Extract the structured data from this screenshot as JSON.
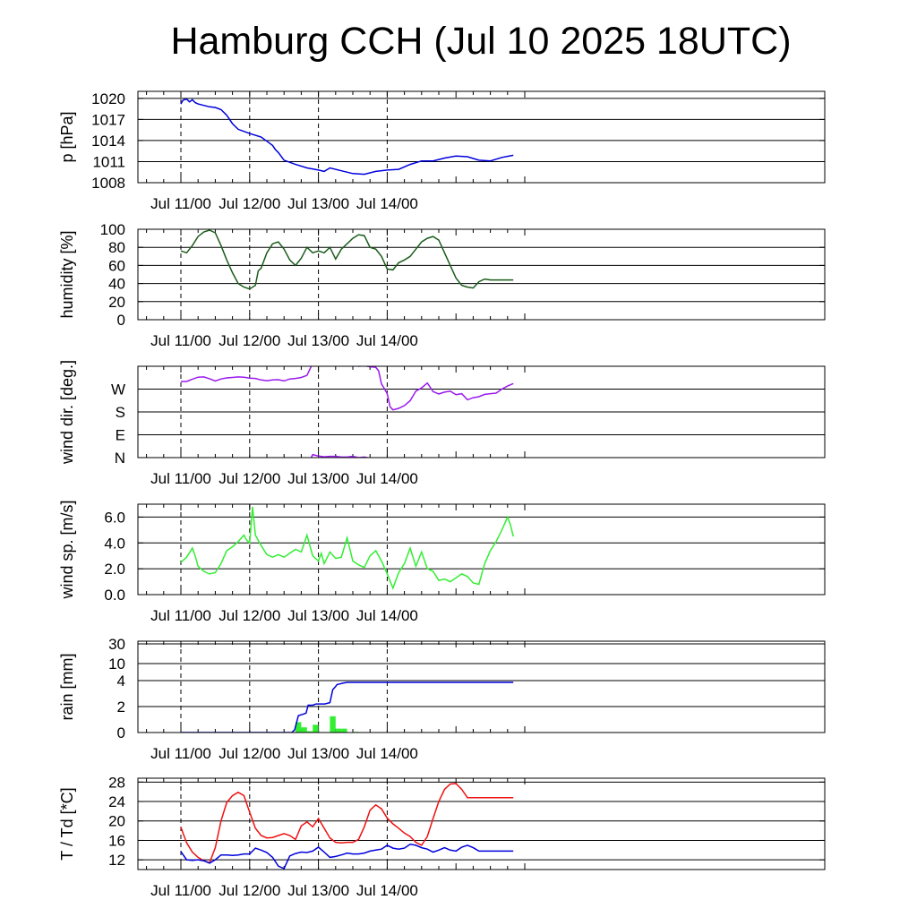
{
  "title": "Hamburg CCH (Jul 10 2025 18UTC)",
  "chart_data": [
    {
      "type": "line",
      "ylabel": "p [hPa]",
      "ylim": [
        1008,
        1021
      ],
      "y_ticks": [
        "1020",
        "1017",
        "1014",
        "1011",
        "1008"
      ],
      "x_ticks": [
        "Jul 11/00",
        "Jul 12/00",
        "Jul 13/00",
        "Jul 14/00"
      ],
      "series": [
        {
          "color": "#0000dd",
          "x": [
            0,
            0.5,
            1,
            2,
            3,
            4,
            5,
            6,
            8,
            10,
            12,
            14,
            16,
            18,
            20,
            24,
            28,
            30,
            32,
            33,
            34,
            36,
            40,
            44,
            48,
            50,
            52,
            56,
            60,
            64,
            68,
            72,
            76,
            80,
            84,
            88,
            92,
            96,
            100,
            104,
            108,
            112,
            116
          ],
          "values": [
            1019.2,
            1019.6,
            1019.8,
            1019.9,
            1019.5,
            1019.8,
            1019.4,
            1019.2,
            1019.0,
            1018.8,
            1018.7,
            1018.4,
            1017.6,
            1016.4,
            1015.6,
            1015.0,
            1014.5,
            1013.9,
            1013.3,
            1012.7,
            1012.3,
            1011.2,
            1010.6,
            1010.1,
            1009.8,
            1009.6,
            1010.1,
            1009.7,
            1009.3,
            1009.2,
            1009.6,
            1009.8,
            1009.9,
            1010.6,
            1011.1,
            1011.1,
            1011.5,
            1011.8,
            1011.7,
            1011.2,
            1011.1,
            1011.6,
            1011.9
          ]
        }
      ]
    },
    {
      "type": "line",
      "ylabel": "humidity [%]",
      "ylim": [
        0,
        100
      ],
      "y_ticks": [
        "100",
        "80",
        "60",
        "40",
        "20",
        "0"
      ],
      "x_ticks": [
        "Jul 11/00",
        "Jul 12/00",
        "Jul 13/00",
        "Jul 14/00"
      ],
      "series": [
        {
          "color": "#1a5c1a",
          "x": [
            0,
            2,
            4,
            6,
            8,
            10,
            12,
            14,
            16,
            18,
            20,
            22,
            24,
            26,
            27,
            28,
            30,
            32,
            34,
            36,
            38,
            40,
            42,
            44,
            46,
            48,
            50,
            52,
            54,
            56,
            58,
            60,
            62,
            64,
            66,
            68,
            70,
            72,
            74,
            76,
            78,
            80,
            82,
            84,
            86,
            88,
            90,
            92,
            94,
            96,
            98,
            100,
            102,
            104,
            106,
            108,
            110,
            112,
            114,
            116
          ],
          "values": [
            76,
            74,
            82,
            92,
            97,
            99,
            96,
            82,
            66,
            52,
            40,
            36,
            34,
            38,
            54,
            57,
            74,
            84,
            86,
            78,
            66,
            60,
            68,
            80,
            74,
            76,
            74,
            80,
            67,
            78,
            84,
            90,
            94,
            93,
            80,
            78,
            70,
            56,
            55,
            63,
            66,
            70,
            78,
            86,
            90,
            92,
            88,
            74,
            60,
            46,
            38,
            36,
            35,
            42,
            45,
            44,
            44,
            44,
            44,
            44
          ]
        }
      ]
    },
    {
      "type": "line",
      "ylabel": "wind dir. [deg.]",
      "ylim": [
        0,
        360
      ],
      "y_ticks": [
        "W",
        "S",
        "E",
        "N"
      ],
      "x_ticks": [
        "Jul 11/00",
        "Jul 12/00",
        "Jul 13/00",
        "Jul 14/00"
      ],
      "series": [
        {
          "color": "#9a1aee",
          "x": [
            0,
            2,
            4,
            6,
            8,
            10,
            12,
            14,
            16,
            18,
            20,
            22,
            24,
            26,
            28,
            30,
            32,
            34,
            36,
            38,
            40,
            42,
            44,
            46,
            48,
            50,
            52,
            54,
            56,
            58,
            60,
            62,
            64,
            66,
            68,
            69,
            70,
            71,
            72,
            73,
            74,
            76,
            78,
            80,
            82,
            84,
            86,
            88,
            90,
            92,
            94,
            96,
            98,
            100,
            102,
            104,
            106,
            108,
            110,
            112,
            114,
            116
          ],
          "values": [
            300,
            300,
            309,
            317,
            318,
            311,
            302,
            310,
            314,
            316,
            318,
            317,
            313,
            312,
            306,
            303,
            306,
            307,
            302,
            310,
            312,
            316,
            324,
            372,
            366,
            363,
            365,
            365,
            362,
            362,
            365,
            360,
            362,
            358,
            356,
            342,
            290,
            272,
            252,
            200,
            188,
            194,
            205,
            224,
            262,
            275,
            294,
            260,
            251,
            258,
            262,
            248,
            252,
            228,
            236,
            240,
            249,
            252,
            254,
            270,
            282,
            292
          ]
        }
      ]
    },
    {
      "type": "line",
      "ylabel": "wind sp. [m/s]",
      "ylim": [
        0,
        7
      ],
      "y_ticks": [
        "6.0",
        "4.0",
        "2.0",
        "0.0"
      ],
      "x_ticks": [
        "Jul 11/00",
        "Jul 12/00",
        "Jul 13/00",
        "Jul 14/00"
      ],
      "series": [
        {
          "color": "#33ee33",
          "x": [
            0,
            2,
            4,
            5,
            6,
            8,
            10,
            12,
            14,
            16,
            18,
            20,
            22,
            23,
            24,
            25,
            26,
            27,
            28,
            30,
            32,
            34,
            36,
            38,
            40,
            42,
            44,
            45,
            46,
            48,
            49,
            50,
            52,
            54,
            56,
            58,
            59,
            60,
            62,
            64,
            66,
            68,
            70,
            72,
            74,
            76,
            78,
            80,
            82,
            84,
            86,
            88,
            90,
            92,
            94,
            96,
            98,
            100,
            102,
            104,
            106,
            108,
            110,
            112,
            114,
            115,
            116
          ],
          "values": [
            2.5,
            2.9,
            3.6,
            3.0,
            2.2,
            1.8,
            1.6,
            1.7,
            2.4,
            3.4,
            3.7,
            4.1,
            4.6,
            4.2,
            4.0,
            6.8,
            4.6,
            4.2,
            3.8,
            3.1,
            2.9,
            3.1,
            2.9,
            3.2,
            3.5,
            3.3,
            4.6,
            3.8,
            3.0,
            2.6,
            3.2,
            2.4,
            3.3,
            2.8,
            2.9,
            4.4,
            3.5,
            2.6,
            2.3,
            2.1,
            3.0,
            3.4,
            2.6,
            1.6,
            0.5,
            1.7,
            2.4,
            3.6,
            2.2,
            3.3,
            2.0,
            1.8,
            1.1,
            1.2,
            1.0,
            1.3,
            1.6,
            1.4,
            0.9,
            0.8,
            2.4,
            3.4,
            4.1,
            5.0,
            6.0,
            5.4,
            4.5
          ]
        }
      ]
    },
    {
      "type": "bar",
      "ylabel": "rain [mm]",
      "ylim": [
        0,
        30
      ],
      "y_ticks": [
        "30",
        "10",
        "4",
        "2",
        "0"
      ],
      "x_ticks": [
        "Jul 11/00",
        "Jul 12/00",
        "Jul 13/00",
        "Jul 14/00"
      ],
      "series": [
        {
          "type": "bar",
          "color": "#33ee33",
          "x": [
            40,
            42,
            44,
            46,
            48,
            50,
            52,
            54,
            56,
            58,
            60,
            62,
            64,
            66,
            68,
            70,
            72,
            74,
            76,
            78,
            80,
            82
          ],
          "values": [
            0.8,
            0.4,
            0.1,
            0.6,
            0,
            0,
            1.25,
            0.3,
            0.3,
            0,
            0.05,
            0,
            0,
            0,
            0,
            0,
            0,
            0,
            0,
            0,
            0,
            0
          ]
        },
        {
          "type": "line",
          "color": "#0000dd",
          "x": [
            0,
            38.7,
            39.7,
            41,
            42.5,
            43.7,
            44.4,
            46,
            47.2,
            48.2,
            50.2,
            52,
            53,
            53.8,
            54.5,
            56.5,
            58,
            116
          ],
          "values": [
            0,
            0,
            0.2,
            1.3,
            1.4,
            1.5,
            2.1,
            2.1,
            2.2,
            2.2,
            2.2,
            2.3,
            3.3,
            3.5,
            3.7,
            3.8,
            3.86,
            3.86
          ]
        }
      ]
    },
    {
      "type": "line",
      "ylabel": "T / Td [*C]",
      "ylim": [
        10,
        28.8
      ],
      "y_ticks": [
        "28",
        "24",
        "20",
        "16",
        "12"
      ],
      "x_ticks": [
        "Jul 11/00",
        "Jul 12/00",
        "Jul 13/00",
        "Jul 14/00"
      ],
      "series": [
        {
          "color": "#ee1111",
          "x": [
            0,
            2,
            4,
            6,
            8,
            10,
            12,
            14,
            16,
            18,
            20,
            22,
            24,
            26,
            28,
            30,
            32,
            34,
            36,
            38,
            40,
            42,
            44,
            46,
            48,
            50,
            52,
            54,
            56,
            58,
            60,
            62,
            64,
            66,
            68,
            70,
            72,
            74,
            76,
            78,
            80,
            82,
            84,
            86,
            88,
            90,
            92,
            94,
            96,
            98,
            100,
            102,
            104,
            106,
            108,
            110,
            112,
            114,
            116
          ],
          "values": [
            18.7,
            15.5,
            13.6,
            12.5,
            11.8,
            11.4,
            14.5,
            20.0,
            23.8,
            25.2,
            25.9,
            25.2,
            21.8,
            18.5,
            17.0,
            16.5,
            16.6,
            17.0,
            17.4,
            17.0,
            16.2,
            19.0,
            19.8,
            18.8,
            20.5,
            18.5,
            16.5,
            15.6,
            15.5,
            15.6,
            15.6,
            16.2,
            18.8,
            22.2,
            23.3,
            22.5,
            20.6,
            19.4,
            18.5,
            17.5,
            16.8,
            15.6,
            15.0,
            16.8,
            20.5,
            24.0,
            26.5,
            27.6,
            27.7,
            26.5,
            24.8,
            24.8,
            24.8,
            24.8,
            24.8,
            24.8,
            24.8,
            24.8,
            24.8
          ]
        },
        {
          "color": "#0000dd",
          "x": [
            0,
            2,
            4,
            6,
            8,
            10,
            12,
            14,
            16,
            18,
            20,
            22,
            24,
            26,
            28,
            30,
            32,
            34,
            36,
            38,
            40,
            42,
            44,
            46,
            48,
            50,
            52,
            54,
            56,
            58,
            60,
            62,
            64,
            66,
            68,
            70,
            72,
            74,
            76,
            78,
            80,
            82,
            84,
            86,
            88,
            90,
            92,
            94,
            96,
            98,
            100,
            102,
            104,
            106,
            108,
            110,
            112,
            114,
            116
          ],
          "values": [
            13.7,
            12.0,
            11.9,
            12.0,
            11.8,
            11.3,
            12.0,
            13.0,
            13.0,
            12.9,
            13.0,
            13.2,
            13.2,
            14.4,
            14.0,
            13.5,
            12.5,
            10.7,
            10.2,
            12.8,
            13.3,
            13.6,
            13.5,
            13.8,
            14.6,
            13.6,
            12.5,
            12.7,
            13.0,
            13.4,
            13.2,
            13.2,
            13.4,
            13.8,
            14.0,
            14.2,
            15.0,
            14.4,
            14.2,
            14.4,
            15.2,
            15.0,
            14.5,
            14.2,
            13.6,
            14.0,
            14.5,
            14.0,
            13.8,
            14.6,
            15.0,
            14.5,
            13.8,
            13.8,
            13.8,
            13.8,
            13.8,
            13.8,
            13.8
          ]
        }
      ]
    }
  ]
}
